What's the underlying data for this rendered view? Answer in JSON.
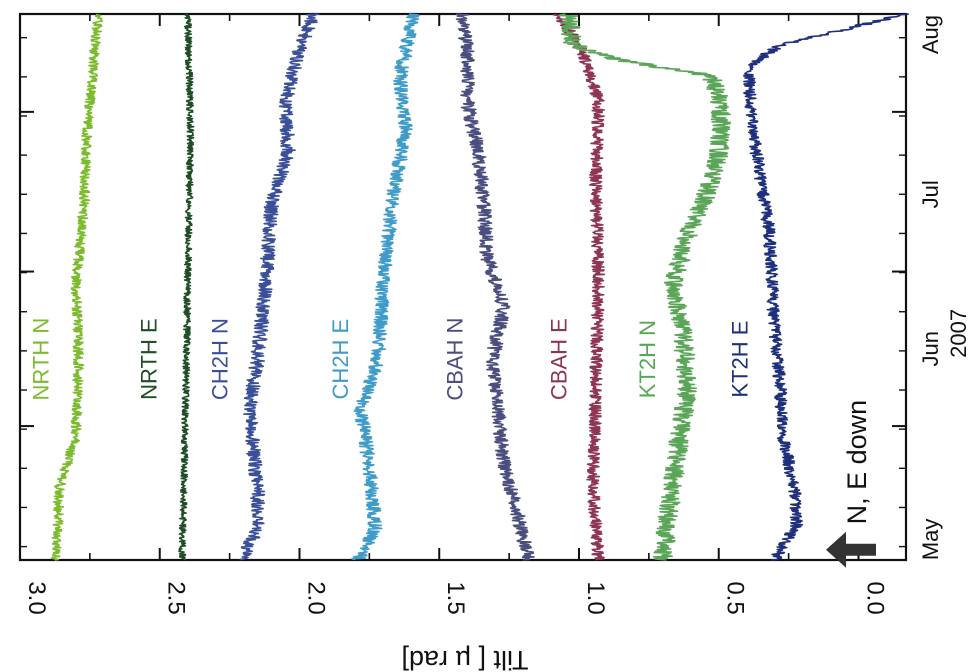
{
  "chart_data": {
    "type": "line",
    "orientation": "rotated-90-clockwise",
    "ylabel": "Tilt [ µ rad]",
    "xlabel": "2007",
    "year": "2007",
    "ylim": [
      -0.17,
      3.0
    ],
    "yticks": [
      "3.0",
      "2.5",
      "2.0",
      "1.5",
      "1.0",
      "0.5",
      "0.0"
    ],
    "month_labels": [
      "May",
      "Jun",
      "Jul",
      "Aug"
    ],
    "month_ticks_doy": [
      121,
      152,
      182,
      213
    ],
    "xlim_doy": [
      126,
      232
    ],
    "annotation": "N, E down",
    "series": [
      {
        "name": "NRTH N",
        "color": "#7dbb2e",
        "noise": 0.018,
        "label_doy": 165,
        "points": [
          [
            126,
            2.87
          ],
          [
            140,
            2.86
          ],
          [
            150,
            2.8
          ],
          [
            165,
            2.79
          ],
          [
            180,
            2.8
          ],
          [
            195,
            2.77
          ],
          [
            210,
            2.76
          ],
          [
            232,
            2.72
          ]
        ]
      },
      {
        "name": "NRTH E",
        "color": "#1f4d26",
        "noise": 0.012,
        "label_doy": 165,
        "points": [
          [
            126,
            2.42
          ],
          [
            150,
            2.41
          ],
          [
            180,
            2.4
          ],
          [
            210,
            2.39
          ],
          [
            232,
            2.4
          ]
        ]
      },
      {
        "name": "CH2H N",
        "color": "#3a4f98",
        "noise": 0.025,
        "label_doy": 165,
        "points": [
          [
            126,
            2.21
          ],
          [
            132,
            2.15
          ],
          [
            140,
            2.15
          ],
          [
            155,
            2.18
          ],
          [
            165,
            2.15
          ],
          [
            180,
            2.12
          ],
          [
            195,
            2.1
          ],
          [
            205,
            2.04
          ],
          [
            215,
            2.05
          ],
          [
            225,
            2.0
          ],
          [
            232,
            1.95
          ]
        ]
      },
      {
        "name": "CH2H E",
        "color": "#3f9bc8",
        "noise": 0.025,
        "label_doy": 165,
        "points": [
          [
            126,
            1.79
          ],
          [
            132,
            1.73
          ],
          [
            140,
            1.74
          ],
          [
            155,
            1.78
          ],
          [
            165,
            1.72
          ],
          [
            180,
            1.7
          ],
          [
            195,
            1.67
          ],
          [
            210,
            1.62
          ],
          [
            220,
            1.64
          ],
          [
            232,
            1.59
          ]
        ]
      },
      {
        "name": "CBAH N",
        "color": "#4a4e7e",
        "noise": 0.025,
        "label_doy": 165,
        "points": [
          [
            126,
            1.18
          ],
          [
            135,
            1.22
          ],
          [
            145,
            1.27
          ],
          [
            155,
            1.29
          ],
          [
            165,
            1.31
          ],
          [
            175,
            1.27
          ],
          [
            185,
            1.33
          ],
          [
            195,
            1.34
          ],
          [
            205,
            1.36
          ],
          [
            215,
            1.4
          ],
          [
            225,
            1.4
          ],
          [
            232,
            1.42
          ]
        ]
      },
      {
        "name": "CBAH E",
        "color": "#8e3455",
        "noise": 0.022,
        "label_doy": 165,
        "points": [
          [
            126,
            0.93
          ],
          [
            140,
            0.95
          ],
          [
            160,
            0.94
          ],
          [
            180,
            0.93
          ],
          [
            200,
            0.94
          ],
          [
            215,
            0.93
          ],
          [
            225,
            0.99
          ],
          [
            230,
            1.05
          ],
          [
            232,
            1.1
          ]
        ]
      },
      {
        "name": "KT2H N",
        "color": "#5aa557",
        "noise": 0.035,
        "label_doy": 165,
        "points": [
          [
            126,
            0.7
          ],
          [
            135,
            0.68
          ],
          [
            150,
            0.64
          ],
          [
            160,
            0.61
          ],
          [
            170,
            0.63
          ],
          [
            180,
            0.66
          ],
          [
            188,
            0.62
          ],
          [
            196,
            0.55
          ],
          [
            205,
            0.5
          ],
          [
            214,
            0.49
          ],
          [
            220,
            0.53
          ],
          [
            223,
            0.85
          ],
          [
            226,
            1.02
          ],
          [
            232,
            1.04
          ]
        ]
      },
      {
        "name": "KT2H E",
        "color": "#1e2f7c",
        "noise": 0.022,
        "label_doy": 165,
        "points": [
          [
            126,
            0.3
          ],
          [
            133,
            0.22
          ],
          [
            140,
            0.23
          ],
          [
            150,
            0.27
          ],
          [
            160,
            0.28
          ],
          [
            170,
            0.3
          ],
          [
            180,
            0.31
          ],
          [
            190,
            0.32
          ],
          [
            200,
            0.35
          ],
          [
            210,
            0.38
          ],
          [
            218,
            0.39
          ],
          [
            222,
            0.39
          ],
          [
            226,
            0.28
          ],
          [
            229,
            0.05
          ],
          [
            232,
            -0.17
          ]
        ]
      }
    ]
  }
}
